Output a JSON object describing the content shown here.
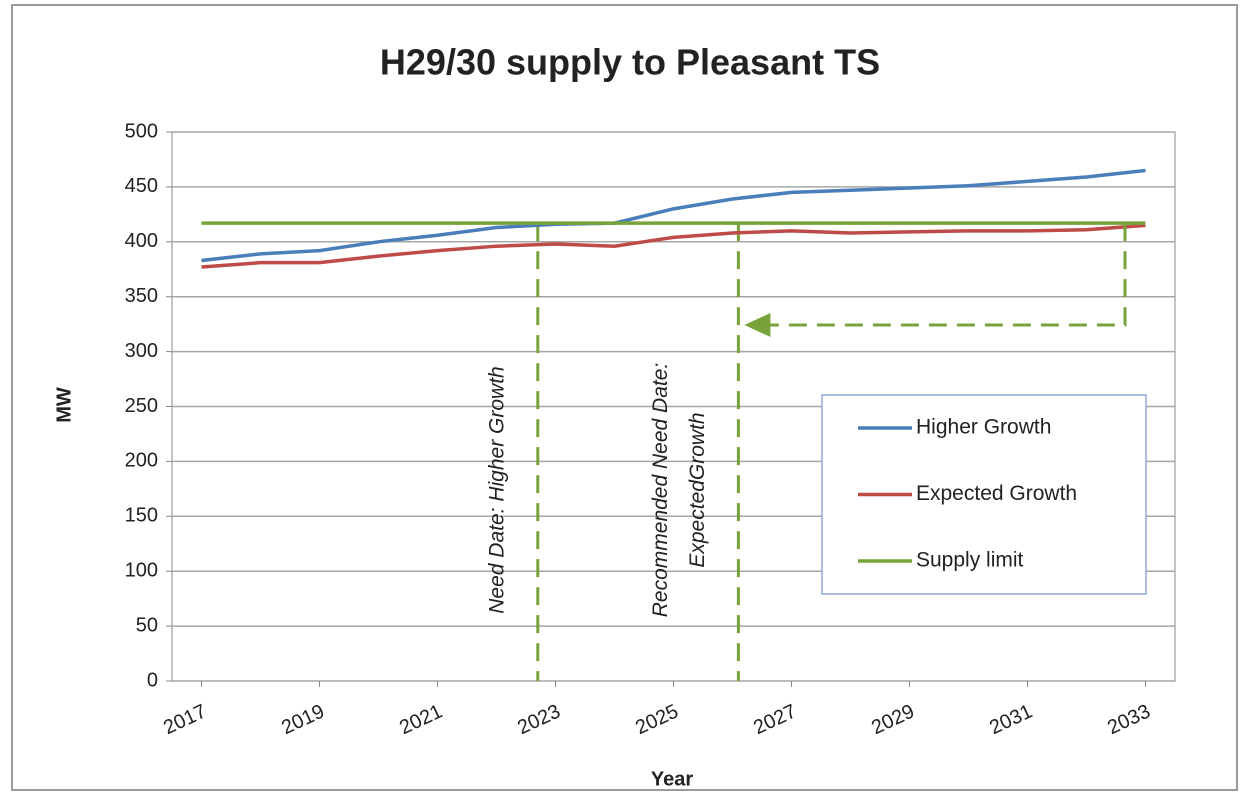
{
  "chart_data": {
    "type": "line",
    "title": "H29/30 supply to Pleasant TS",
    "xlabel": "Year",
    "ylabel": "MW",
    "x": [
      2017,
      2018,
      2019,
      2020,
      2021,
      2022,
      2023,
      2024,
      2025,
      2026,
      2027,
      2028,
      2029,
      2030,
      2031,
      2032,
      2033
    ],
    "series": [
      {
        "name": "Higher Growth",
        "color": "#4a7ebb",
        "values": [
          383,
          389,
          392,
          400,
          406,
          413,
          416,
          417,
          430,
          439,
          445,
          447,
          449,
          451,
          455,
          459,
          465
        ]
      },
      {
        "name": "Expected Growth",
        "color": "#be4b48",
        "values": [
          377,
          381,
          381,
          387,
          392,
          396,
          398,
          396,
          404,
          408,
          410,
          408,
          409,
          410,
          410,
          411,
          415
        ]
      },
      {
        "name": "Supply limit",
        "color": "#77a33a",
        "values": [
          417,
          417,
          417,
          417,
          417,
          417,
          417,
          417,
          417,
          417,
          417,
          417,
          417,
          417,
          417,
          417,
          417
        ]
      }
    ],
    "xlim": [
      2016.5,
      2033.5
    ],
    "xticks": [
      2017,
      2019,
      2021,
      2023,
      2025,
      2027,
      2029,
      2031,
      2033
    ],
    "ylim": [
      0,
      500
    ],
    "yticks": [
      0,
      50,
      100,
      150,
      200,
      250,
      300,
      350,
      400,
      450,
      500
    ],
    "grid": true,
    "legend": "right",
    "annotations": [
      {
        "x": 2022.7,
        "lines": [
          "Need Date: Higher Growth"
        ]
      },
      {
        "x": 2026.1,
        "lines": [
          "Recommended Need Date:",
          "ExpectedGrowth"
        ]
      }
    ]
  }
}
